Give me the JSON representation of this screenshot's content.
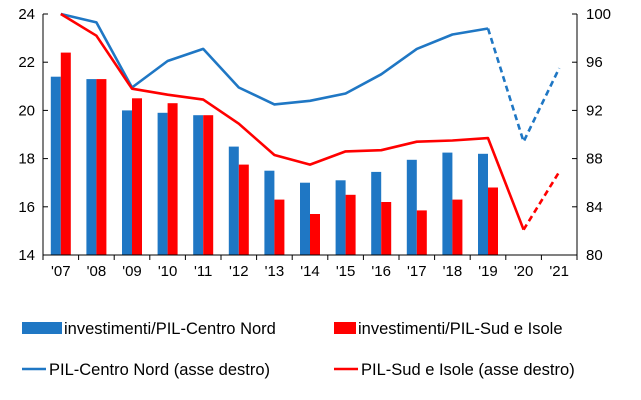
{
  "chart_data": {
    "type": "bar-line-combo",
    "categories": [
      "'07",
      "'08",
      "'09",
      "'10",
      "'11",
      "'12",
      "'13",
      "'14",
      "'15",
      "'16",
      "'17",
      "'18",
      "'19",
      "'20",
      "'21"
    ],
    "left_axis": {
      "ylim": [
        14,
        24
      ],
      "ticks": [
        "14",
        "16",
        "18",
        "20",
        "22",
        "24"
      ]
    },
    "right_axis": {
      "ylim": [
        80,
        100
      ],
      "ticks": [
        "80",
        "84",
        "88",
        "92",
        "96",
        "100"
      ]
    },
    "grid": false,
    "legend_position": "bottom",
    "bar_series": [
      {
        "name": "investimenti/PIL-Centro Nord",
        "axis": "left",
        "color": "#1f77c4",
        "values": [
          21.4,
          21.3,
          20.0,
          19.9,
          19.8,
          18.5,
          17.5,
          17.0,
          17.1,
          17.45,
          17.95,
          18.25,
          18.2,
          null,
          null
        ]
      },
      {
        "name": "investimenti/PIL-Sud e Isole",
        "axis": "left",
        "color": "#ff0000",
        "values": [
          22.4,
          21.3,
          20.5,
          20.3,
          19.8,
          17.75,
          16.3,
          15.7,
          16.5,
          16.2,
          15.85,
          16.3,
          16.8,
          null,
          null
        ]
      }
    ],
    "line_series": [
      {
        "name": "PIL-Centro Nord (asse destro)",
        "axis": "right",
        "color": "#1f77c4",
        "values": [
          100.0,
          99.3,
          93.9,
          96.1,
          97.1,
          93.9,
          92.5,
          92.8,
          93.4,
          95.0,
          97.1,
          98.3,
          98.8,
          89.4,
          95.5
        ],
        "projected_from": "'19"
      },
      {
        "name": "PIL-Sud e Isole (asse destro)",
        "axis": "right",
        "color": "#ff0000",
        "values": [
          100.0,
          98.2,
          93.8,
          93.3,
          92.9,
          90.9,
          88.3,
          87.5,
          88.6,
          88.7,
          89.4,
          89.5,
          89.7,
          82.1,
          86.9
        ],
        "projected_from": "'20"
      }
    ]
  }
}
